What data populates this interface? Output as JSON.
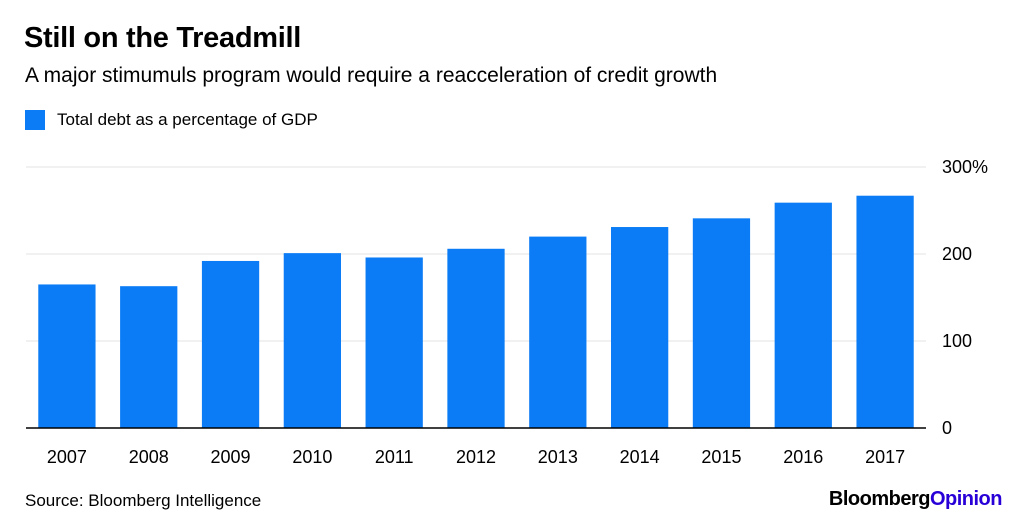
{
  "header": {
    "title": "Still on the Treadmill",
    "subtitle": "A major stimumuls program would require a reacceleration of credit growth"
  },
  "legend": {
    "label": "Total debt as a percentage of GDP"
  },
  "footer": {
    "source": "Source: Bloomberg Intelligence",
    "brand_part1": "Bloomberg",
    "brand_part2": "Opinion"
  },
  "colors": {
    "bar": "#0b7cf5",
    "grid": "#e3e3e3",
    "axis": "#000000",
    "brand_accent": "#2800d7"
  },
  "chart_data": {
    "type": "bar",
    "title": "Still on the Treadmill",
    "subtitle": "A major stimumuls program would require a reacceleration of credit growth",
    "categories": [
      "2007",
      "2008",
      "2009",
      "2010",
      "2011",
      "2012",
      "2013",
      "2014",
      "2015",
      "2016",
      "2017"
    ],
    "series": [
      {
        "name": "Total debt as a percentage of GDP",
        "values": [
          165,
          163,
          192,
          201,
          196,
          206,
          220,
          231,
          241,
          259,
          267
        ]
      }
    ],
    "ylim": [
      0,
      300
    ],
    "yticks": [
      0,
      100,
      200,
      300
    ],
    "ytick_labels": [
      "0",
      "100",
      "200",
      "300%"
    ],
    "y_axis_side": "right",
    "grid": true,
    "legend_position": "top-left",
    "xlabel": "",
    "ylabel": ""
  }
}
